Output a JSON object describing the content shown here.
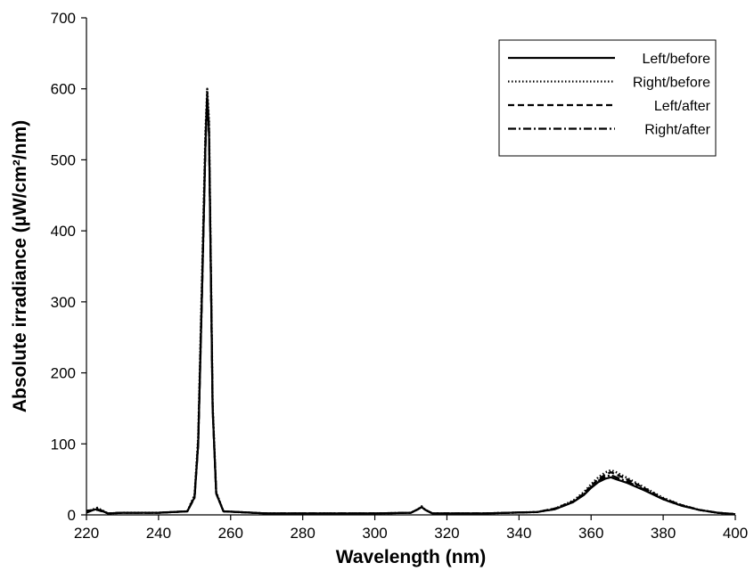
{
  "chart_data": {
    "type": "line",
    "title": "",
    "xlabel": "Wavelength (nm)",
    "ylabel": "Absolute irradiance (µW/cm²/nm)",
    "xlim": [
      220,
      400
    ],
    "ylim": [
      0,
      700
    ],
    "xticks": [
      "220",
      "240",
      "260",
      "280",
      "300",
      "320",
      "340",
      "360",
      "380",
      "400"
    ],
    "yticks": [
      "0",
      "100",
      "200",
      "300",
      "400",
      "500",
      "600",
      "700"
    ],
    "grid": false,
    "legend_position": "top-right",
    "series": [
      {
        "name": "Left/before",
        "style": "solid",
        "x": [
          220,
          223,
          226,
          230,
          240,
          248,
          250,
          251,
          252,
          253,
          253.5,
          254,
          254.5,
          255,
          256,
          258,
          270,
          290,
          300,
          310,
          312,
          313,
          314,
          316,
          330,
          345,
          350,
          355,
          358,
          360,
          362,
          364,
          365.5,
          367,
          370,
          375,
          380,
          385,
          390,
          395,
          400
        ],
        "y": [
          5,
          8,
          2,
          3,
          3,
          5,
          25,
          100,
          300,
          520,
          590,
          540,
          350,
          150,
          30,
          5,
          2,
          2,
          2,
          3,
          8,
          11,
          7,
          2,
          2,
          4,
          8,
          18,
          28,
          38,
          46,
          51,
          53,
          50,
          45,
          34,
          22,
          13,
          7,
          3,
          1
        ]
      },
      {
        "name": "Right/before",
        "style": "dotted",
        "x": [
          220,
          223,
          226,
          230,
          240,
          248,
          250,
          251,
          252,
          253,
          253.5,
          254,
          254.5,
          255,
          256,
          258,
          270,
          290,
          300,
          310,
          312,
          313,
          314,
          316,
          330,
          345,
          350,
          355,
          358,
          360,
          362,
          364,
          365.5,
          367,
          370,
          375,
          380,
          385,
          390,
          395,
          400
        ],
        "y": [
          4,
          10,
          2,
          3,
          3,
          5,
          28,
          110,
          320,
          540,
          600,
          555,
          360,
          155,
          32,
          5,
          2,
          2,
          2,
          3,
          8,
          12,
          7,
          2,
          2,
          4,
          9,
          20,
          32,
          43,
          53,
          60,
          63,
          60,
          52,
          38,
          24,
          14,
          7,
          3,
          1
        ]
      },
      {
        "name": "Left/after",
        "style": "dashed",
        "x": [
          220,
          223,
          226,
          230,
          240,
          248,
          250,
          251,
          252,
          253,
          253.5,
          254,
          254.5,
          255,
          256,
          258,
          270,
          290,
          300,
          310,
          312,
          313,
          314,
          316,
          330,
          345,
          350,
          355,
          358,
          360,
          362,
          364,
          365.5,
          367,
          370,
          375,
          380,
          385,
          390,
          395,
          400
        ],
        "y": [
          6,
          7,
          2,
          3,
          3,
          5,
          26,
          105,
          310,
          530,
          595,
          548,
          355,
          152,
          31,
          5,
          2,
          2,
          2,
          3,
          8,
          11,
          7,
          2,
          2,
          4,
          9,
          19,
          30,
          41,
          50,
          57,
          60,
          57,
          50,
          37,
          23,
          14,
          7,
          3,
          1
        ]
      },
      {
        "name": "Right/after",
        "style": "dashdot",
        "x": [
          220,
          223,
          226,
          230,
          240,
          248,
          250,
          251,
          252,
          253,
          253.5,
          254,
          254.5,
          255,
          256,
          258,
          270,
          290,
          300,
          310,
          312,
          313,
          314,
          316,
          330,
          345,
          350,
          355,
          358,
          360,
          362,
          364,
          365.5,
          367,
          370,
          375,
          380,
          385,
          390,
          395,
          400
        ],
        "y": [
          3,
          9,
          2,
          3,
          3,
          5,
          24,
          98,
          295,
          515,
          585,
          535,
          345,
          148,
          30,
          5,
          2,
          2,
          2,
          3,
          8,
          11,
          7,
          2,
          2,
          4,
          8,
          18,
          29,
          39,
          48,
          54,
          56,
          53,
          47,
          35,
          22,
          13,
          7,
          3,
          1
        ]
      }
    ]
  }
}
